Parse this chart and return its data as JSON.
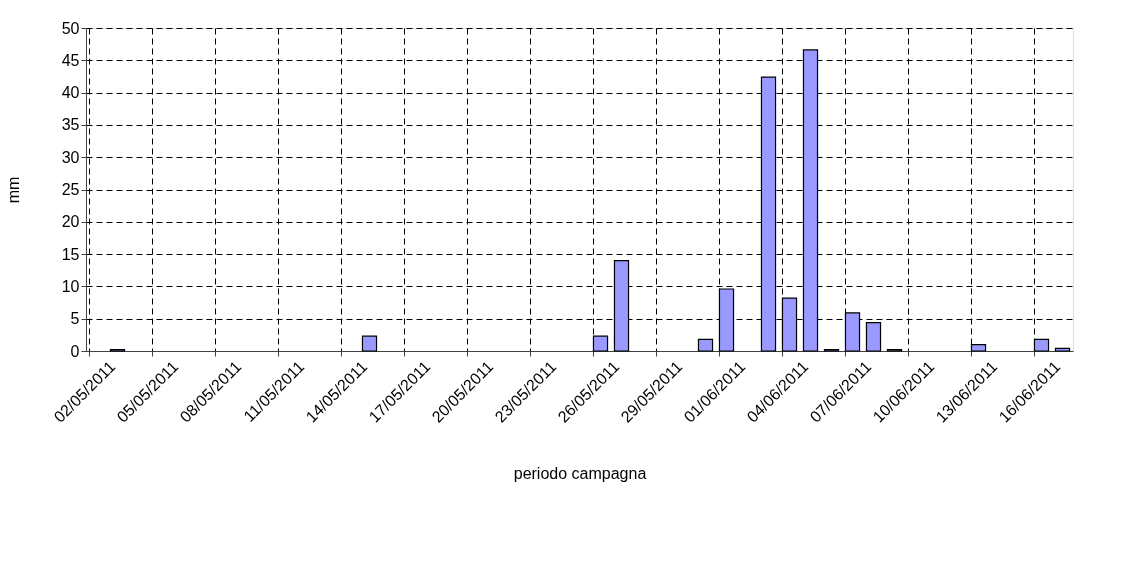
{
  "chart_data": {
    "type": "bar",
    "xlabel": "periodo campagna",
    "ylabel": "mm",
    "categories": [
      "02/05/2011",
      null,
      null,
      "05/05/2011",
      null,
      null,
      "08/05/2011",
      null,
      null,
      "11/05/2011",
      null,
      null,
      "14/05/2011",
      null,
      null,
      "17/05/2011",
      null,
      null,
      "20/05/2011",
      null,
      null,
      "23/05/2011",
      null,
      null,
      "26/05/2011",
      null,
      null,
      "29/05/2011",
      null,
      null,
      "01/06/2011",
      null,
      null,
      "04/06/2011",
      null,
      null,
      "07/06/2011",
      null,
      null,
      "10/06/2011",
      null,
      null,
      "13/06/2011",
      null,
      null,
      "16/06/2011",
      null
    ],
    "values": [
      null,
      0.2,
      null,
      null,
      null,
      null,
      null,
      null,
      null,
      null,
      null,
      null,
      null,
      2.3,
      null,
      null,
      null,
      null,
      null,
      null,
      null,
      null,
      null,
      null,
      2.3,
      14.0,
      null,
      null,
      null,
      1.8,
      9.6,
      null,
      42.4,
      8.2,
      46.6,
      0.2,
      5.9,
      4.4,
      0.2,
      null,
      null,
      null,
      1.0,
      null,
      null,
      1.8,
      0.4
    ],
    "color": "#9999ff",
    "ylim": [
      0,
      50
    ],
    "yticks": [
      0,
      5,
      10,
      15,
      20,
      25,
      30,
      35,
      40,
      45,
      50
    ],
    "grid": true
  }
}
